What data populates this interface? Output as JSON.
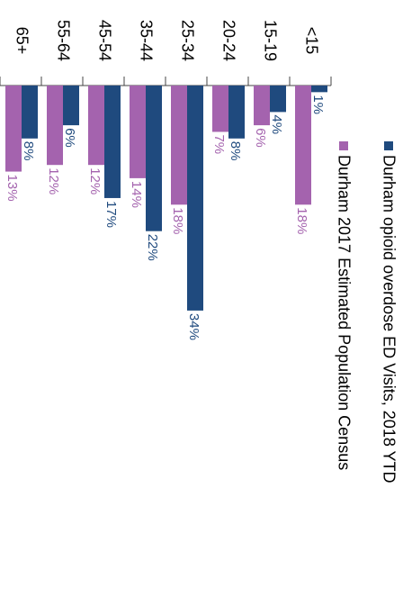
{
  "chart_data": {
    "type": "bar",
    "orientation": "horizontal",
    "categories": [
      "<15",
      "15-19",
      "20-24",
      "25-34",
      "35-44",
      "45-54",
      "55-64",
      "65+"
    ],
    "series": [
      {
        "name": "Durham opioid overdose ED Visits, 2018 YTD",
        "color": "#1f4a7e",
        "values": [
          1,
          4,
          8,
          34,
          22,
          17,
          6,
          8
        ],
        "value_labels": [
          "1%",
          "4%",
          "8%",
          "34%",
          "22%",
          "17%",
          "6%",
          "8%"
        ]
      },
      {
        "name": "Durham 2017 Estimated Population Census",
        "color": "#a463ae",
        "values": [
          18,
          6,
          7,
          18,
          14,
          12,
          12,
          13
        ],
        "value_labels": [
          "18%",
          "6%",
          "7%",
          "18%",
          "14%",
          "12%",
          "12%",
          "13%"
        ]
      }
    ],
    "ylim": [
      0,
      40
    ]
  }
}
